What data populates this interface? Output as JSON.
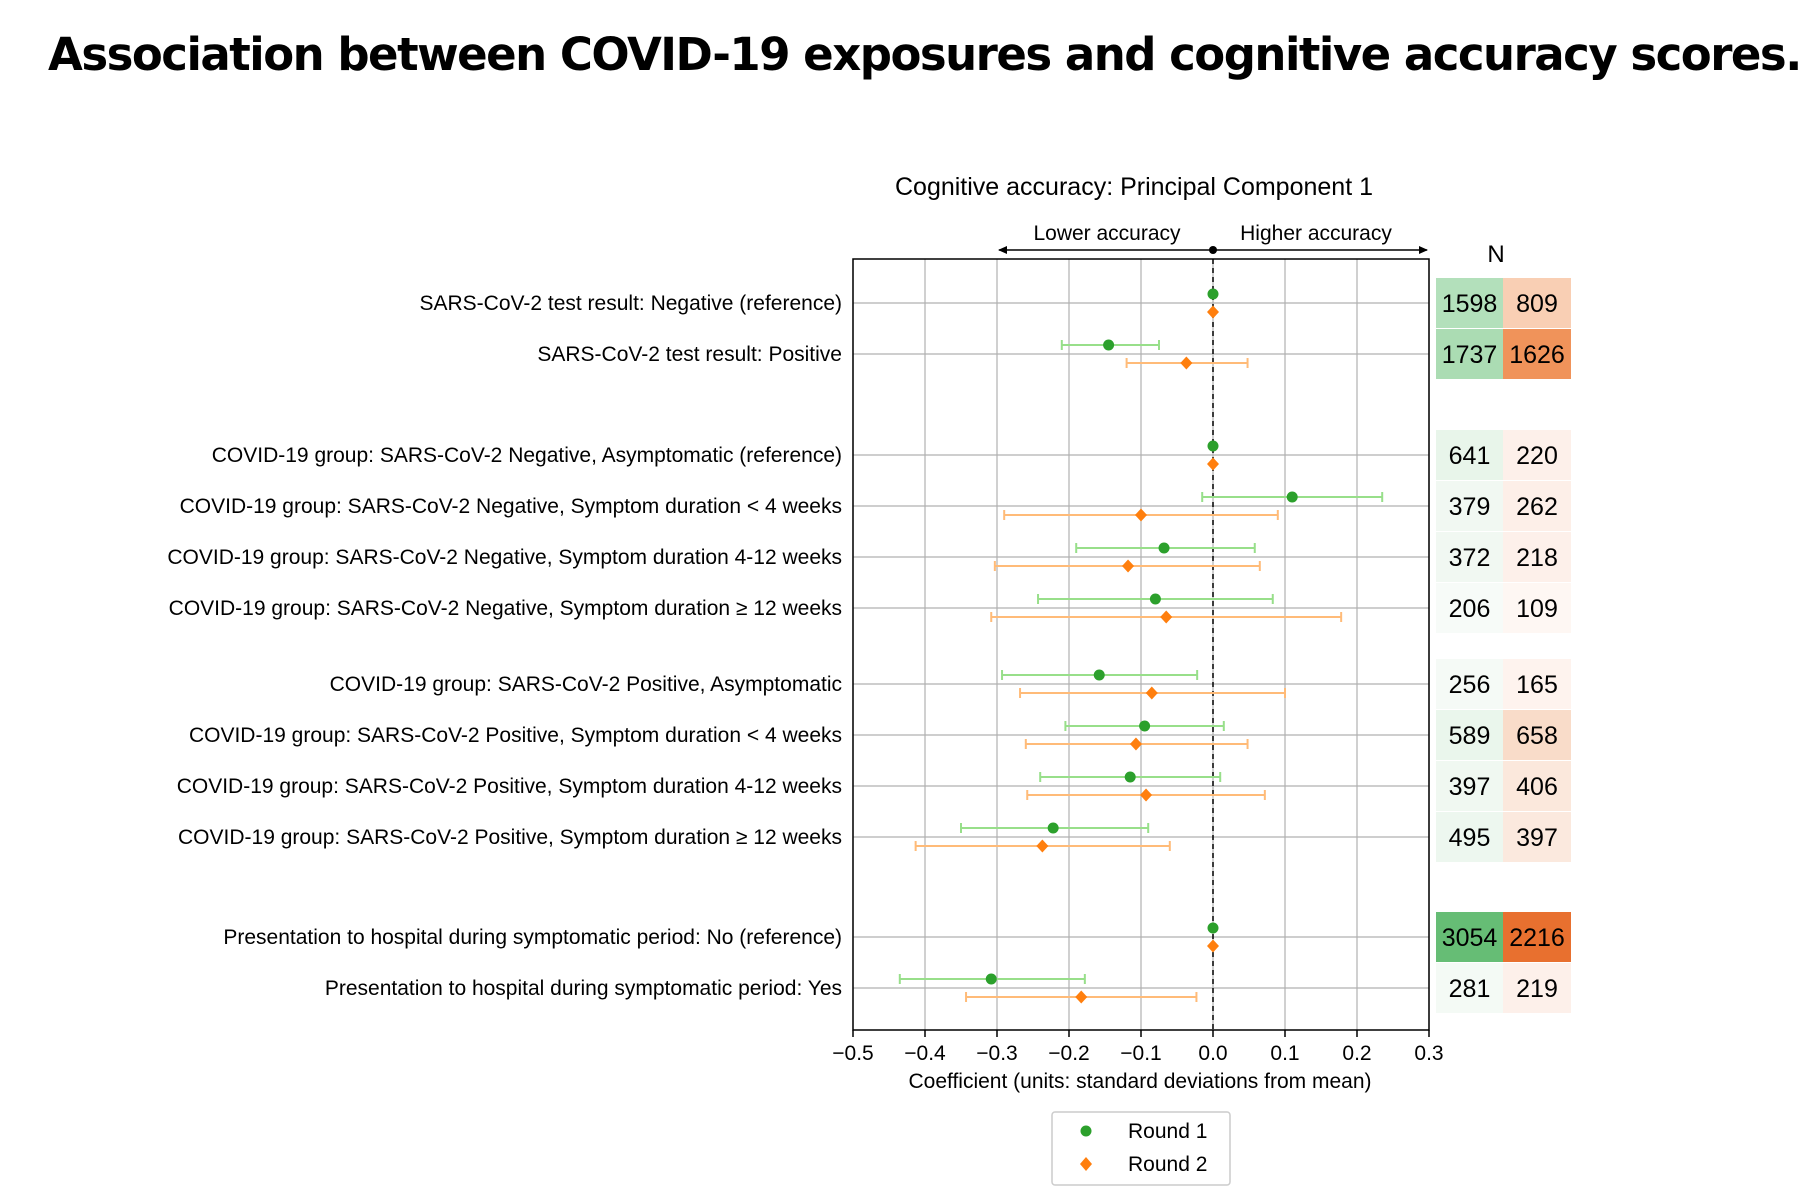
{
  "page_title": "Association between COVID-19 exposures and cognitive accuracy scores.",
  "chart_data": {
    "type": "forest",
    "title": "Cognitive accuracy: Principal Component 1",
    "direction_labels": {
      "left": "Lower accuracy",
      "right": "Higher accuracy"
    },
    "xlabel": "Coefficient (units: standard deviations from mean)",
    "xlim": [
      -0.5,
      0.3
    ],
    "xticks": [
      -0.5,
      -0.4,
      -0.3,
      -0.2,
      -0.1,
      0.0,
      0.1,
      0.2,
      0.3
    ],
    "xtick_labels": [
      "−0.5",
      "−0.4",
      "−0.3",
      "−0.2",
      "−0.1",
      "0.0",
      "0.1",
      "0.2",
      "0.3"
    ],
    "grid": true,
    "reference_line": 0.0,
    "n_header": "N",
    "legend": {
      "placement": "bottom-center",
      "entries": [
        "Round 1",
        "Round 2"
      ]
    },
    "series": [
      {
        "name": "Round 1",
        "color": "#2ca02c",
        "ci_color": "#98df8a",
        "marker": "circle"
      },
      {
        "name": "Round 2",
        "color": "#ff7f0e",
        "ci_color": "#ffbb78",
        "marker": "diamond"
      }
    ],
    "rows": [
      {
        "label": "SARS-CoV-2 test result: Negative (reference)",
        "r1": {
          "est": 0.0,
          "lo": 0.0,
          "hi": 0.0
        },
        "r2": {
          "est": 0.0,
          "lo": 0.0,
          "hi": 0.0
        },
        "n1": "1598",
        "n2": "809",
        "n1_color": "#b3e0bb",
        "n2_color": "#f9cfb4"
      },
      {
        "label": "SARS-CoV-2 test result: Positive",
        "r1": {
          "est": -0.145,
          "lo": -0.21,
          "hi": -0.075
        },
        "r2": {
          "est": -0.037,
          "lo": -0.12,
          "hi": 0.048
        },
        "n1": "1737",
        "n2": "1626",
        "n1_color": "#abdcb3",
        "n2_color": "#f0935a"
      },
      {
        "label": "COVID-19 group: SARS-CoV-2 Negative, Asymptomatic (reference)",
        "r1": {
          "est": 0.0,
          "lo": 0.0,
          "hi": 0.0
        },
        "r2": {
          "est": 0.0,
          "lo": 0.0,
          "hi": 0.0
        },
        "n1": "641",
        "n2": "220",
        "n1_color": "#e8f5ea",
        "n2_color": "#fdf0ea"
      },
      {
        "label": "COVID-19 group: SARS-CoV-2 Negative, Symptom duration < 4 weeks",
        "r1": {
          "est": 0.11,
          "lo": -0.015,
          "hi": 0.235
        },
        "r2": {
          "est": -0.1,
          "lo": -0.29,
          "hi": 0.09
        },
        "n1": "379",
        "n2": "262",
        "n1_color": "#f1f8f2",
        "n2_color": "#fdefe8"
      },
      {
        "label": "COVID-19 group: SARS-CoV-2 Negative, Symptom duration 4-12 weeks",
        "r1": {
          "est": -0.068,
          "lo": -0.19,
          "hi": 0.058
        },
        "r2": {
          "est": -0.118,
          "lo": -0.303,
          "hi": 0.065
        },
        "n1": "372",
        "n2": "218",
        "n1_color": "#f1f8f2",
        "n2_color": "#fdf0ea"
      },
      {
        "label": "COVID-19 group: SARS-CoV-2 Negative, Symptom duration ≥ 12 weeks",
        "r1": {
          "est": -0.08,
          "lo": -0.243,
          "hi": 0.083
        },
        "r2": {
          "est": -0.065,
          "lo": -0.308,
          "hi": 0.178
        },
        "n1": "206",
        "n2": "109",
        "n1_color": "#f7fbf8",
        "n2_color": "#fef7f3"
      },
      {
        "label": "COVID-19 group: SARS-CoV-2 Positive, Asymptomatic",
        "r1": {
          "est": -0.158,
          "lo": -0.293,
          "hi": -0.022
        },
        "r2": {
          "est": -0.085,
          "lo": -0.268,
          "hi": 0.1
        },
        "n1": "256",
        "n2": "165",
        "n1_color": "#f5faf6",
        "n2_color": "#fef3ee"
      },
      {
        "label": "COVID-19 group: SARS-CoV-2 Positive, Symptom duration < 4 weeks",
        "r1": {
          "est": -0.095,
          "lo": -0.205,
          "hi": 0.015
        },
        "r2": {
          "est": -0.107,
          "lo": -0.26,
          "hi": 0.048
        },
        "n1": "589",
        "n2": "658",
        "n1_color": "#eaf6ec",
        "n2_color": "#f9dcc9"
      },
      {
        "label": "COVID-19 group: SARS-CoV-2 Positive, Symptom duration 4-12 weeks",
        "r1": {
          "est": -0.115,
          "lo": -0.24,
          "hi": 0.01
        },
        "r2": {
          "est": -0.093,
          "lo": -0.258,
          "hi": 0.072
        },
        "n1": "397",
        "n2": "406",
        "n1_color": "#f0f8f1",
        "n2_color": "#fbe8dc"
      },
      {
        "label": "COVID-19 group: SARS-CoV-2 Positive, Symptom duration ≥ 12 weeks",
        "r1": {
          "est": -0.222,
          "lo": -0.35,
          "hi": -0.09
        },
        "r2": {
          "est": -0.237,
          "lo": -0.413,
          "hi": -0.06
        },
        "n1": "495",
        "n2": "397",
        "n1_color": "#edf7ef",
        "n2_color": "#fbe9de"
      },
      {
        "label": "Presentation to hospital during symptomatic period: No (reference)",
        "r1": {
          "est": 0.0,
          "lo": 0.0,
          "hi": 0.0
        },
        "r2": {
          "est": 0.0,
          "lo": 0.0,
          "hi": 0.0
        },
        "n1": "3054",
        "n2": "2216",
        "n1_color": "#66bd75",
        "n2_color": "#e8702f"
      },
      {
        "label": "Presentation to hospital during symptomatic period: Yes",
        "r1": {
          "est": -0.308,
          "lo": -0.435,
          "hi": -0.178
        },
        "r2": {
          "est": -0.183,
          "lo": -0.343,
          "hi": -0.023
        },
        "n1": "281",
        "n2": "219",
        "n1_color": "#f4faf5",
        "n2_color": "#fdf0ea"
      }
    ]
  }
}
